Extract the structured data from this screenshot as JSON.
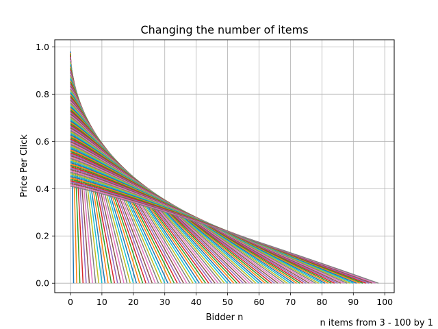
{
  "chart_data": {
    "type": "line",
    "title": "Changing the number of items",
    "xlabel": "Bidder n",
    "ylabel": "Price Per Click",
    "caption": "n items from 3 - 100 by 1",
    "xlim": [
      -5,
      103
    ],
    "ylim": [
      -0.04,
      1.03
    ],
    "xticks": [
      0,
      10,
      20,
      30,
      40,
      50,
      60,
      70,
      80,
      90,
      100
    ],
    "xtick_labels": [
      "0",
      "10",
      "20",
      "30",
      "40",
      "50",
      "60",
      "70",
      "80",
      "90",
      "100"
    ],
    "yticks": [
      0.0,
      0.2,
      0.4,
      0.6,
      0.8,
      1.0
    ],
    "ytick_labels": [
      "0.0",
      "0.2",
      "0.4",
      "0.6",
      "0.8",
      "1.0"
    ],
    "grid": true,
    "legend": "none",
    "series_rule": {
      "n_items_start": 3,
      "n_items_end": 100,
      "n_items_step": 1,
      "x_start": 0,
      "x_end_for_n": "n - 2",
      "y_start_first": 0.98,
      "y_start_last": 0.41,
      "y_end": 0.0,
      "curve_exponent": 1.12,
      "note": "each series is one line starting at bidder 0 and falling to 0.0 at the last bidder"
    },
    "color_cycle": [
      "#1f77b4",
      "#ff7f0e",
      "#2ca02c",
      "#d62728",
      "#9467bd",
      "#8c564b",
      "#e377c2",
      "#7f7f7f",
      "#bcbd22",
      "#17becf"
    ]
  }
}
